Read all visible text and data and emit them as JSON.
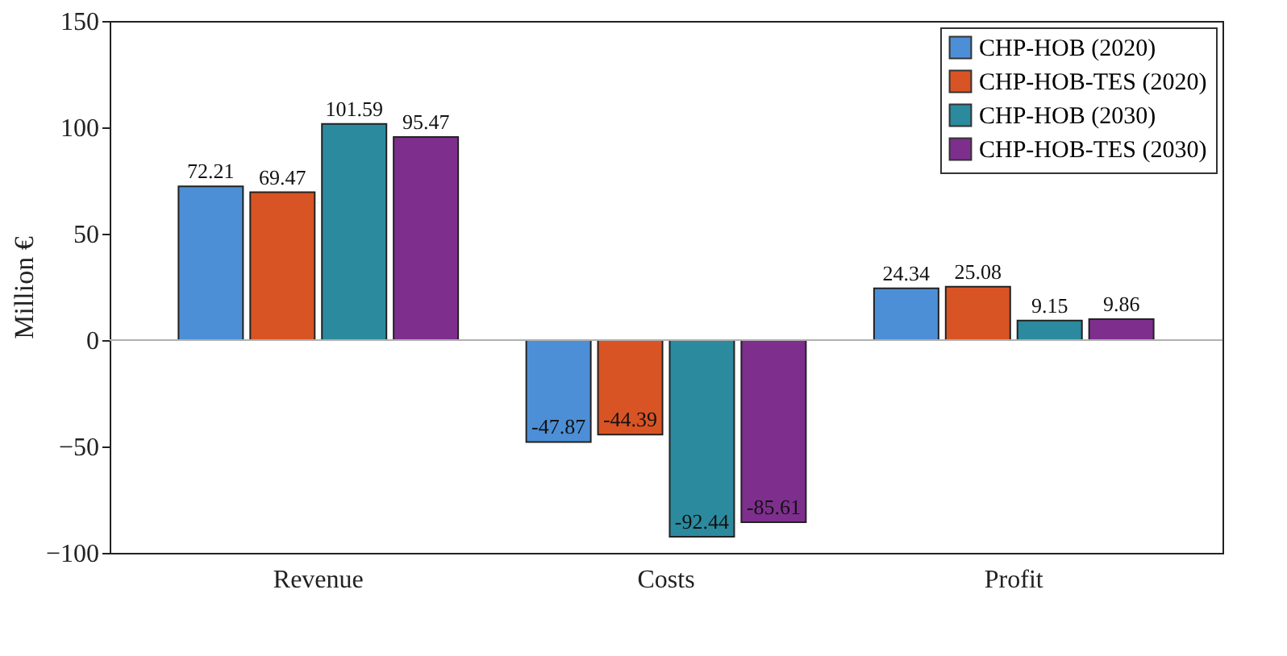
{
  "chart_data": {
    "type": "bar",
    "ylabel": "Million €",
    "categories": [
      "Revenue",
      "Costs",
      "Profit"
    ],
    "series": [
      {
        "name": "CHP-HOB (2020)",
        "color": "#4d8fd6",
        "values": [
          72.21,
          -47.87,
          24.34
        ]
      },
      {
        "name": "CHP-HOB-TES (2020)",
        "color": "#d95424",
        "values": [
          69.47,
          -44.39,
          25.08
        ]
      },
      {
        "name": "CHP-HOB (2030)",
        "color": "#2b8a9e",
        "values": [
          101.59,
          -92.44,
          9.15
        ]
      },
      {
        "name": "CHP-HOB-TES (2030)",
        "color": "#7e2f8e",
        "values": [
          95.47,
          -85.61,
          9.86
        ]
      }
    ],
    "ylim": [
      -100,
      150
    ],
    "yticks": [
      -100,
      -50,
      0,
      50,
      100,
      150
    ],
    "data_labels": true,
    "legend": "top right",
    "grid": false,
    "ref_lines": [
      {
        "axis": "y",
        "value": 0,
        "color": "#b0b0b0"
      }
    ]
  }
}
